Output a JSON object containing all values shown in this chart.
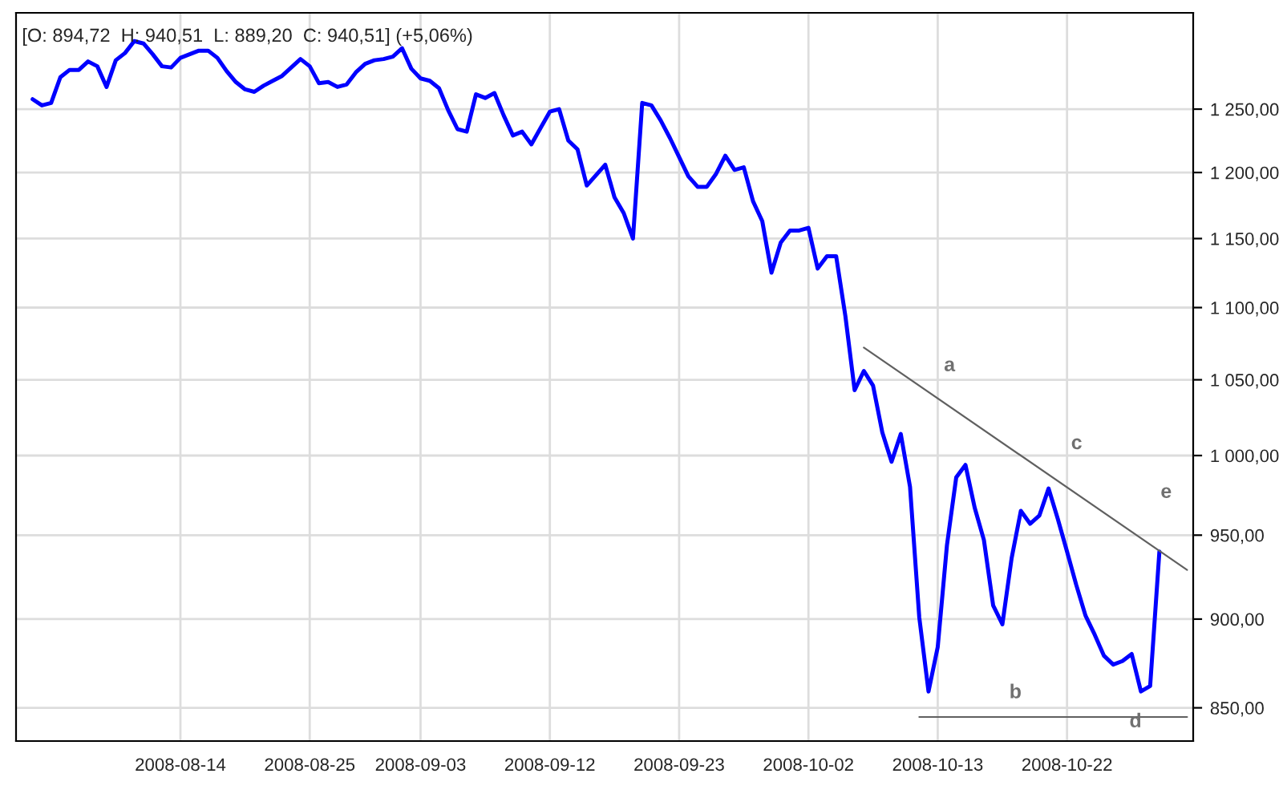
{
  "chart_data": {
    "type": "line",
    "title": "[O: 894,72  H: 940,51  L: 889,20  C: 940,51] (+5,06%)",
    "log": "y",
    "grid": true,
    "categories": [
      null,
      null,
      null,
      null,
      null,
      null,
      null,
      null,
      null,
      null,
      null,
      null,
      null,
      null,
      null,
      null,
      "2008-08-14",
      null,
      null,
      null,
      null,
      null,
      null,
      null,
      null,
      null,
      null,
      null,
      null,
      null,
      "2008-08-25",
      null,
      null,
      null,
      null,
      null,
      null,
      null,
      null,
      null,
      null,
      null,
      "2008-09-03",
      null,
      null,
      null,
      null,
      null,
      null,
      null,
      null,
      null,
      null,
      null,
      null,
      null,
      "2008-09-12",
      null,
      null,
      null,
      null,
      null,
      null,
      null,
      null,
      null,
      null,
      null,
      null,
      null,
      "2008-09-23",
      null,
      null,
      null,
      null,
      null,
      null,
      null,
      null,
      null,
      null,
      null,
      null,
      null,
      "2008-10-02",
      null,
      null,
      null,
      null,
      null,
      null,
      null,
      null,
      null,
      null,
      null,
      null,
      null,
      "2008-10-13",
      null,
      null,
      null,
      null,
      null,
      null,
      null,
      null,
      null,
      null,
      null,
      null,
      null,
      "2008-10-22",
      null,
      null,
      null,
      null,
      null,
      null,
      null,
      null,
      null,
      null,
      null,
      null,
      null
    ],
    "series": [
      {
        "color": "#0000ff",
        "values": [
          1258,
          1253,
          1255,
          1276,
          1282,
          1282,
          1289,
          1285,
          1268,
          1290,
          1296,
          1306,
          1304,
          1295,
          1285,
          1284,
          1292,
          1295,
          1298,
          1298,
          1292,
          1281,
          1272,
          1266,
          1264,
          1269,
          1273,
          1277,
          1284,
          1291,
          1285,
          1271,
          1272,
          1268,
          1270,
          1280,
          1287,
          1290,
          1291,
          1293,
          1300,
          1283,
          1275,
          1273,
          1267,
          1249,
          1234,
          1232,
          1262,
          1259,
          1263,
          1245,
          1229,
          1232,
          1222,
          1235,
          1248,
          1250,
          1225,
          1218,
          1190,
          1198,
          1206,
          1181,
          1169,
          1150,
          1255,
          1253,
          1241,
          1227,
          1212,
          1197,
          1189,
          1189,
          1199,
          1213,
          1202,
          1204,
          1178,
          1163,
          1125,
          1147,
          1156,
          1156,
          1158,
          1128,
          1137,
          1137,
          1094,
          1043,
          1056,
          1046,
          1015,
          996,
          1014,
          980,
          901,
          859,
          884,
          944,
          986,
          994,
          967,
          947,
          908,
          897,
          936,
          965,
          957,
          962,
          979,
          960,
          940,
          920,
          902,
          891,
          879,
          874,
          876,
          880,
          859,
          862,
          940,
          null,
          null,
          null
        ]
      },
      {
        "color": "#606060",
        "values": [
          null,
          null,
          null,
          null,
          null,
          null,
          null,
          null,
          null,
          null,
          null,
          null,
          null,
          null,
          null,
          null,
          null,
          null,
          null,
          null,
          null,
          null,
          null,
          null,
          null,
          null,
          null,
          null,
          null,
          null,
          null,
          null,
          null,
          null,
          null,
          null,
          null,
          null,
          null,
          null,
          null,
          null,
          null,
          null,
          null,
          null,
          null,
          null,
          null,
          null,
          null,
          null,
          null,
          null,
          null,
          null,
          null,
          null,
          null,
          null,
          null,
          null,
          null,
          null,
          null,
          null,
          null,
          null,
          null,
          null,
          null,
          null,
          null,
          null,
          null,
          null,
          null,
          null,
          null,
          null,
          null,
          null,
          null,
          null,
          null,
          null,
          null,
          null,
          null,
          null,
          1072,
          null,
          null,
          null,
          null,
          null,
          null,
          null,
          null,
          null,
          null,
          null,
          null,
          null,
          null,
          null,
          null,
          null,
          null,
          null,
          null,
          null,
          null,
          null,
          null,
          null,
          null,
          null,
          null,
          null,
          null,
          null,
          null,
          null,
          null,
          929
        ]
      },
      {
        "color": "#606060",
        "values": [
          null,
          null,
          null,
          null,
          null,
          null,
          null,
          null,
          null,
          null,
          null,
          null,
          null,
          null,
          null,
          null,
          null,
          null,
          null,
          null,
          null,
          null,
          null,
          null,
          null,
          null,
          null,
          null,
          null,
          null,
          null,
          null,
          null,
          null,
          null,
          null,
          null,
          null,
          null,
          null,
          null,
          null,
          null,
          null,
          null,
          null,
          null,
          null,
          null,
          null,
          null,
          null,
          null,
          null,
          null,
          null,
          null,
          null,
          null,
          null,
          null,
          null,
          null,
          null,
          null,
          null,
          null,
          null,
          null,
          null,
          null,
          null,
          null,
          null,
          null,
          null,
          null,
          null,
          null,
          null,
          null,
          null,
          null,
          null,
          null,
          null,
          null,
          null,
          null,
          null,
          null,
          null,
          null,
          null,
          null,
          null,
          845,
          null,
          null,
          null,
          null,
          null,
          null,
          null,
          null,
          null,
          null,
          null,
          null,
          null,
          null,
          null,
          null,
          null,
          null,
          null,
          null,
          null,
          null,
          null,
          null,
          null,
          null,
          null,
          null,
          845
        ]
      }
    ],
    "ylim": [
      832,
      1330
    ],
    "yticks": [
      {
        "value": 850,
        "label": "850,00"
      },
      {
        "value": 900,
        "label": "900,00"
      },
      {
        "value": 950,
        "label": "950,00"
      },
      {
        "value": 1000,
        "label": "1 000,00"
      },
      {
        "value": 1050,
        "label": "1 050,00"
      },
      {
        "value": 1100,
        "label": "1 100,00"
      },
      {
        "value": 1150,
        "label": "1 150,00"
      },
      {
        "value": 1200,
        "label": "1 200,00"
      },
      {
        "value": 1250,
        "label": "1 250,00"
      }
    ],
    "annotations": [
      "a",
      "b",
      "c",
      "d",
      "e"
    ]
  }
}
